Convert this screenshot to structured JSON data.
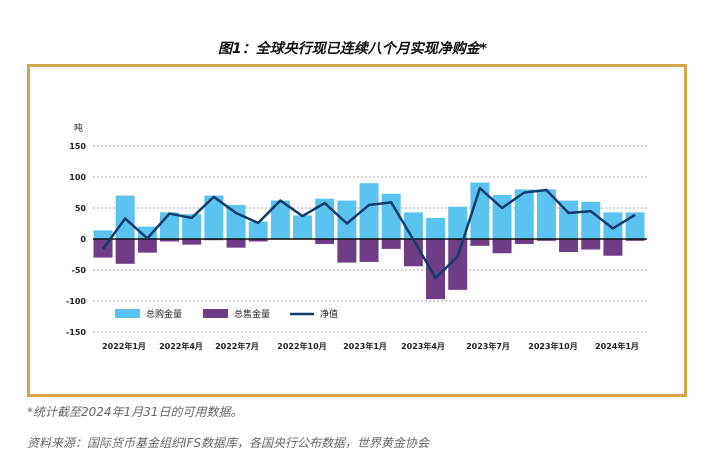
{
  "title": "图1：全球央行现已连续八个月实现净购金*",
  "footnote": "*统计截至2024年1月31日的可用数据。",
  "source": "资料来源：国际货币基金组织IFS数据库，各国央行公布数据，世界黄金协会",
  "chart_data": {
    "type": "bar+line",
    "ylabel": "吨",
    "ylim": [
      -150,
      150
    ],
    "yticks": [
      150,
      100,
      50,
      0,
      -50,
      -100,
      -150
    ],
    "grid": true,
    "legend_position": "bottom-left",
    "x": [
      "2022-01",
      "2022-02",
      "2022-03",
      "2022-04",
      "2022-05",
      "2022-06",
      "2022-07",
      "2022-08",
      "2022-09",
      "2022-10",
      "2022-11",
      "2022-12",
      "2023-01",
      "2023-02",
      "2023-03",
      "2023-04",
      "2023-05",
      "2023-06",
      "2023-07",
      "2023-08",
      "2023-09",
      "2023-10",
      "2023-11",
      "2023-12",
      "2024-01"
    ],
    "xtick_labels": [
      "2022年1月",
      "2022年4月",
      "2022年7月",
      "2022年10月",
      "2023年1月",
      "2023年4月",
      "2023年7月",
      "2023年10月",
      "2024年1月"
    ],
    "series": [
      {
        "name": "总购金量",
        "type": "bar",
        "color": "#5bc3f0",
        "values": [
          14,
          70,
          20,
          43,
          40,
          70,
          55,
          28,
          62,
          38,
          65,
          62,
          90,
          73,
          43,
          34,
          52,
          91,
          71,
          80,
          80,
          62,
          60,
          43,
          43
        ]
      },
      {
        "name": "总售金量",
        "type": "bar",
        "color": "#6e3d86",
        "values": [
          -30,
          -40,
          -22,
          -4,
          -9,
          -2,
          -14,
          -4,
          -1,
          -1,
          -8,
          -38,
          -37,
          -16,
          -44,
          -97,
          -82,
          -11,
          -23,
          -8,
          -3,
          -21,
          -17,
          -27,
          -3
        ]
      },
      {
        "name": "净值",
        "type": "line",
        "color": "#123a6a",
        "values": [
          -16,
          33,
          1,
          41,
          34,
          68,
          42,
          26,
          62,
          37,
          58,
          25,
          55,
          59,
          -1,
          -63,
          -28,
          82,
          50,
          75,
          79,
          42,
          45,
          17,
          39
        ]
      }
    ]
  }
}
